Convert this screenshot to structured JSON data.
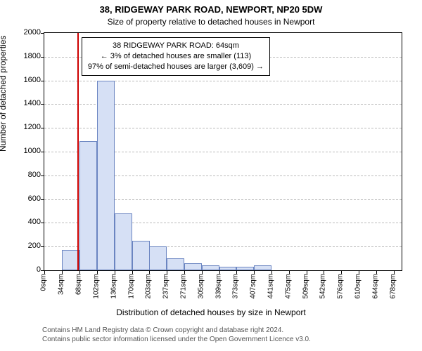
{
  "title_line1": "38, RIDGEWAY PARK ROAD, NEWPORT, NP20 5DW",
  "title_line2": "Size of property relative to detached houses in Newport",
  "ylabel": "Number of detached properties",
  "xlabel": "Distribution of detached houses by size in Newport",
  "attribution_line1": "Contains HM Land Registry data © Crown copyright and database right 2024.",
  "attribution_line2": "Contains public sector information licensed under the Open Government Licence v3.0.",
  "chart": {
    "type": "histogram",
    "background_color": "#ffffff",
    "grid_color": "#bbbbbb",
    "axis_color": "#000000",
    "bar_fill": "#d6e0f5",
    "bar_stroke": "#6b85c1",
    "marker_color": "#cc0000",
    "x_min": 0,
    "x_max": 693,
    "bin_width": 34,
    "y_min": 0,
    "y_max": 2000,
    "y_tick_step": 200,
    "x_ticks": [
      0,
      34,
      68,
      102,
      136,
      170,
      203,
      237,
      271,
      305,
      339,
      373,
      407,
      441,
      475,
      509,
      542,
      576,
      610,
      644,
      678
    ],
    "x_tick_unit": "sqm",
    "bins_start": [
      0,
      34,
      68,
      102,
      136,
      170,
      203,
      237,
      271,
      305,
      339,
      373,
      407
    ],
    "counts": [
      0,
      170,
      1090,
      1600,
      480,
      250,
      200,
      100,
      60,
      40,
      30,
      30,
      40
    ],
    "marker_x": 64,
    "callout": {
      "line1": "38 RIDGEWAY PARK ROAD: 64sqm",
      "line2": "← 3% of detached houses are smaller (113)",
      "line3": "97% of semi-detached houses are larger (3,609) →"
    },
    "title_fontsize": 13,
    "subtitle_fontsize": 12,
    "axis_label_fontsize": 12,
    "tick_fontsize": 11
  }
}
